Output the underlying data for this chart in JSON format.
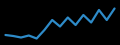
{
  "values": [
    6.5,
    6.3,
    6.0,
    6.4,
    5.8,
    7.5,
    9.5,
    8.2,
    10.0,
    8.5,
    10.5,
    9.0,
    11.5,
    9.5,
    11.8
  ],
  "line_color": "#2E8BC8",
  "background_color": "#000000",
  "ylim": [
    4.5,
    13.5
  ],
  "linewidth": 1.6
}
